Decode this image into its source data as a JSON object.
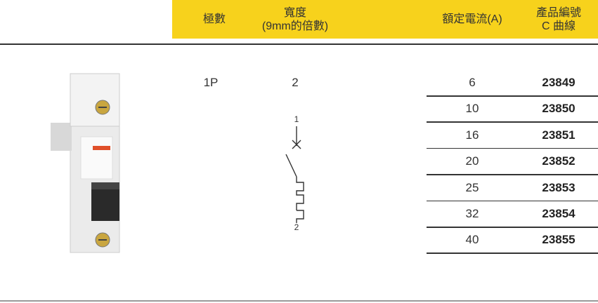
{
  "header": {
    "columns": [
      {
        "title": "極數"
      },
      {
        "title": "寬度",
        "subtitle": "(9mm的倍數)"
      },
      {
        "title": "額定電流(A)"
      },
      {
        "title": "產品編號",
        "subtitle": "C 曲線"
      }
    ]
  },
  "product": {
    "poles": "1P",
    "width": 2
  },
  "diagram": {
    "terminals": [
      1,
      2
    ]
  },
  "table": {
    "rows": [
      {
        "current": 6,
        "code": 23849
      },
      {
        "current": 10,
        "code": 23850
      },
      {
        "current": 16,
        "code": 23851
      },
      {
        "current": 20,
        "code": 23852
      },
      {
        "current": 25,
        "code": 23853
      },
      {
        "current": 32,
        "code": 23854
      },
      {
        "current": 40,
        "code": 23855
      }
    ]
  }
}
